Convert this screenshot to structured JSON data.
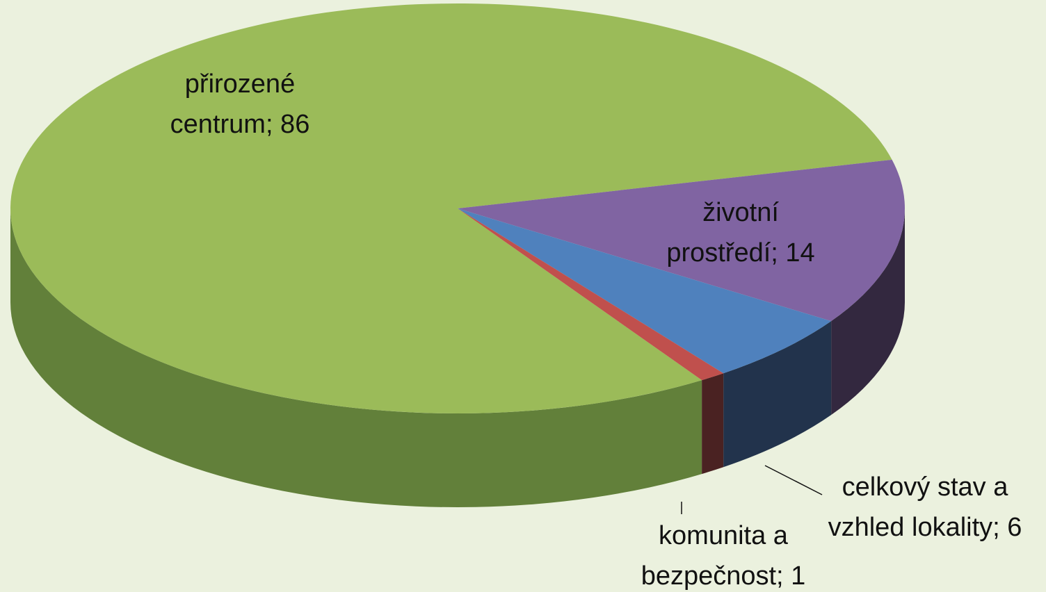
{
  "chart_data": {
    "type": "pie",
    "value_labels": [
      "přirozené centrum; 86",
      "životní prostředí; 14",
      "celkový stav a vzhled lokality; 6",
      "komunita a bezpečnost; 1"
    ],
    "values": [
      86,
      14,
      6,
      1
    ],
    "colors": [
      "#9bbb59",
      "#8064a2",
      "#4f81bd",
      "#c0504d"
    ],
    "side_colors": [
      "#62803a",
      "#33283f",
      "#22334c",
      "#4a2222"
    ]
  }
}
